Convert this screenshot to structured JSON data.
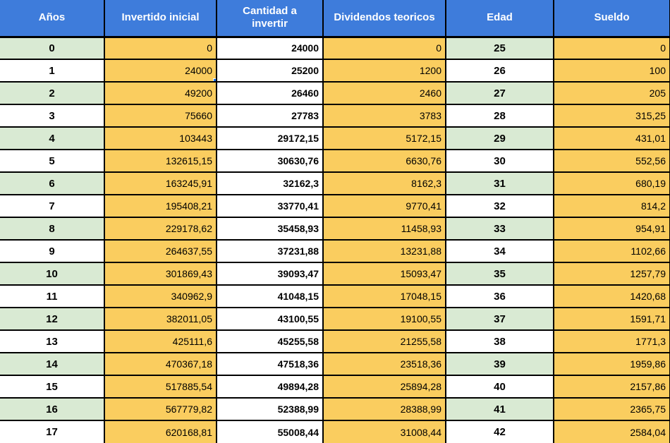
{
  "colors": {
    "header_bg": "#3E7CDB",
    "cell_yellow": "#FACD5F",
    "cell_green": "#D9EAD3",
    "selection_blue": "#1A73E8",
    "grid_border": "#000000",
    "header_text": "#FFFFFF"
  },
  "table": {
    "columns": [
      {
        "id": "anos",
        "label": "Años"
      },
      {
        "id": "invertido-inicial",
        "label": "Invertido inicial"
      },
      {
        "id": "cantidad-a-invertir",
        "label": "Cantidad a invertir"
      },
      {
        "id": "dividendos-teoricos",
        "label": "Dividendos teoricos"
      },
      {
        "id": "edad",
        "label": "Edad"
      },
      {
        "id": "sueldo",
        "label": "Sueldo"
      }
    ],
    "rows": [
      [
        "0",
        "0",
        "24000",
        "0",
        "25",
        "0"
      ],
      [
        "1",
        "24000",
        "25200",
        "1200",
        "26",
        "100"
      ],
      [
        "2",
        "49200",
        "26460",
        "2460",
        "27",
        "205"
      ],
      [
        "3",
        "75660",
        "27783",
        "3783",
        "28",
        "315,25"
      ],
      [
        "4",
        "103443",
        "29172,15",
        "5172,15",
        "29",
        "431,01"
      ],
      [
        "5",
        "132615,15",
        "30630,76",
        "6630,76",
        "30",
        "552,56"
      ],
      [
        "6",
        "163245,91",
        "32162,3",
        "8162,3",
        "31",
        "680,19"
      ],
      [
        "7",
        "195408,21",
        "33770,41",
        "9770,41",
        "32",
        "814,2"
      ],
      [
        "8",
        "229178,62",
        "35458,93",
        "11458,93",
        "33",
        "954,91"
      ],
      [
        "9",
        "264637,55",
        "37231,88",
        "13231,88",
        "34",
        "1102,66"
      ],
      [
        "10",
        "301869,43",
        "39093,47",
        "15093,47",
        "35",
        "1257,79"
      ],
      [
        "11",
        "340962,9",
        "41048,15",
        "17048,15",
        "36",
        "1420,68"
      ],
      [
        "12",
        "382011,05",
        "43100,55",
        "19100,55",
        "37",
        "1591,71"
      ],
      [
        "13",
        "425111,6",
        "45255,58",
        "21255,58",
        "38",
        "1771,3"
      ],
      [
        "14",
        "470367,18",
        "47518,36",
        "23518,36",
        "39",
        "1959,86"
      ],
      [
        "15",
        "517885,54",
        "49894,28",
        "25894,28",
        "40",
        "2157,86"
      ],
      [
        "16",
        "567779,82",
        "52388,99",
        "28388,99",
        "41",
        "2365,75"
      ],
      [
        "17",
        "620168,81",
        "55008,44",
        "31008,44",
        "42",
        "2584,04"
      ]
    ]
  },
  "selection": {
    "row_index": 1,
    "col_index": 1,
    "value": "24000"
  }
}
